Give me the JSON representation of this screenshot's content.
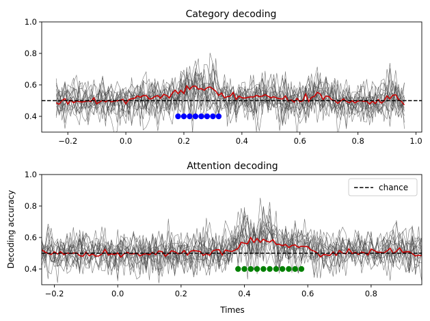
{
  "chart_data": [
    {
      "type": "line",
      "title": "Category decoding",
      "xlabel": "",
      "ylabel": "",
      "xlim": [
        -0.29,
        1.02
      ],
      "ylim": [
        0.3,
        1.0
      ],
      "xticks": [
        -0.2,
        0.0,
        0.2,
        0.4,
        0.6,
        0.8,
        1.0
      ],
      "xtick_labels": [
        "−0.2",
        "0.0",
        "0.2",
        "0.4",
        "0.6",
        "0.8",
        "1.0"
      ],
      "yticks": [
        0.4,
        0.6,
        0.8,
        1.0
      ],
      "ytick_labels": [
        "0.4",
        "0.6",
        "0.8",
        "1.0"
      ],
      "chance_level": 0.5,
      "time_range": [
        -0.24,
        0.96
      ],
      "n_subjects": 15,
      "subject_noise_sd": 0.065,
      "mean_series_color": "#cc0000",
      "subject_series_color": "#444444",
      "significant_times": [
        0.18,
        0.2,
        0.22,
        0.24,
        0.26,
        0.28,
        0.3,
        0.32
      ],
      "significant_marker_y": 0.4,
      "significant_color": "#0000ff",
      "mean_anchors": [
        [
          -0.24,
          0.48
        ],
        [
          -0.1,
          0.5
        ],
        [
          0.0,
          0.5
        ],
        [
          0.04,
          0.53
        ],
        [
          0.1,
          0.52
        ],
        [
          0.16,
          0.54
        ],
        [
          0.2,
          0.56
        ],
        [
          0.24,
          0.59
        ],
        [
          0.26,
          0.56
        ],
        [
          0.28,
          0.56
        ],
        [
          0.3,
          0.58
        ],
        [
          0.34,
          0.53
        ],
        [
          0.4,
          0.52
        ],
        [
          0.5,
          0.52
        ],
        [
          0.6,
          0.5
        ],
        [
          0.66,
          0.54
        ],
        [
          0.72,
          0.5
        ],
        [
          0.8,
          0.5
        ],
        [
          0.86,
          0.49
        ],
        [
          0.92,
          0.54
        ],
        [
          0.96,
          0.49
        ]
      ],
      "legend": []
    },
    {
      "type": "line",
      "title": "Attention decoding",
      "xlabel": "Times",
      "ylabel": "Decoding accuracy",
      "xlim": [
        -0.24,
        0.96
      ],
      "ylim": [
        0.3,
        1.0
      ],
      "xticks": [
        -0.2,
        0.0,
        0.2,
        0.4,
        0.6,
        0.8
      ],
      "xtick_labels": [
        "−0.2",
        "0.0",
        "0.2",
        "0.4",
        "0.6",
        "0.8"
      ],
      "yticks": [
        0.4,
        0.6,
        0.8,
        1.0
      ],
      "ytick_labels": [
        "0.4",
        "0.6",
        "0.8",
        "1.0"
      ],
      "chance_level": 0.5,
      "time_range": [
        -0.24,
        0.96
      ],
      "n_subjects": 15,
      "subject_noise_sd": 0.065,
      "mean_series_color": "#cc0000",
      "subject_series_color": "#444444",
      "significant_times": [
        0.38,
        0.4,
        0.42,
        0.44,
        0.46,
        0.48,
        0.5,
        0.52,
        0.54,
        0.56,
        0.58
      ],
      "significant_marker_y": 0.4,
      "significant_color": "#008000",
      "mean_anchors": [
        [
          -0.24,
          0.5
        ],
        [
          -0.1,
          0.49
        ],
        [
          0.0,
          0.5
        ],
        [
          0.1,
          0.5
        ],
        [
          0.2,
          0.5
        ],
        [
          0.3,
          0.5
        ],
        [
          0.36,
          0.52
        ],
        [
          0.4,
          0.57
        ],
        [
          0.44,
          0.58
        ],
        [
          0.48,
          0.59
        ],
        [
          0.52,
          0.55
        ],
        [
          0.56,
          0.55
        ],
        [
          0.6,
          0.53
        ],
        [
          0.64,
          0.49
        ],
        [
          0.7,
          0.51
        ],
        [
          0.8,
          0.5
        ],
        [
          0.88,
          0.52
        ],
        [
          0.96,
          0.49
        ]
      ],
      "legend": [
        {
          "label": "chance",
          "style": "dashed",
          "color": "#000000"
        }
      ]
    }
  ]
}
